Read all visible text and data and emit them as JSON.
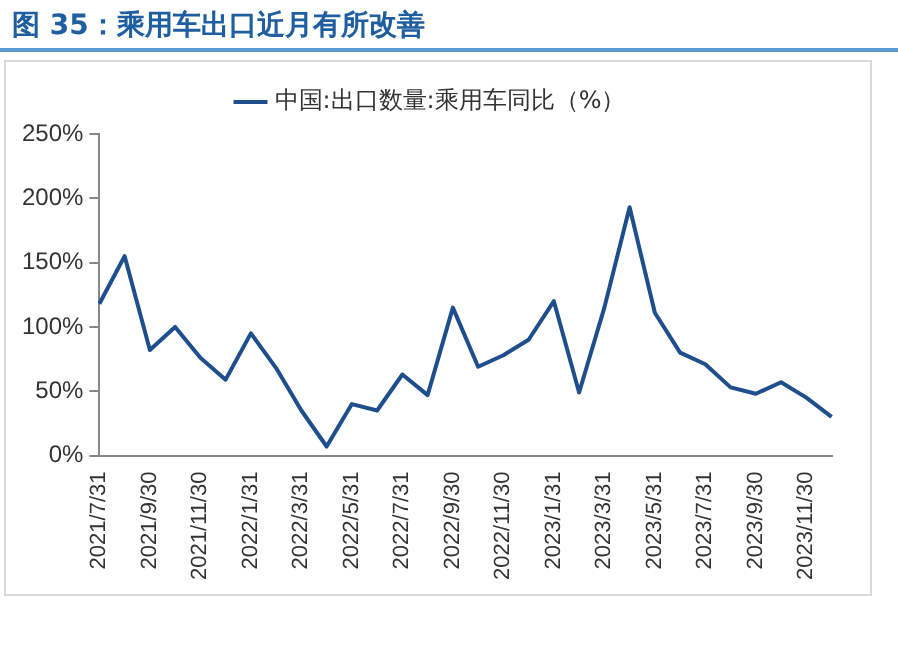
{
  "chart_data": {
    "type": "line",
    "title": "图 35：乘用车出口近月有所改善",
    "categories": [
      "2021/7/31",
      null,
      "2021/9/30",
      null,
      "2021/11/30",
      null,
      "2022/1/31",
      null,
      "2022/3/31",
      null,
      "2022/5/31",
      null,
      "2022/7/31",
      null,
      "2022/9/30",
      null,
      "2022/11/30",
      null,
      "2023/1/31",
      null,
      "2023/3/31",
      null,
      "2023/5/31",
      null,
      "2023/7/31",
      null,
      "2023/9/30",
      null,
      "2023/11/30",
      null
    ],
    "series": [
      {
        "name": "中国:出口数量:乘用车同比（%）",
        "color": "#1f4e8c",
        "values": [
          118,
          155,
          82,
          100,
          76,
          59,
          95,
          68,
          35,
          7,
          40,
          35,
          63,
          47,
          115,
          69,
          78,
          90,
          120,
          49,
          115,
          193,
          111,
          80,
          71,
          53,
          48,
          57,
          45,
          30
        ]
      }
    ],
    "ylim": [
      0,
      250
    ],
    "yticks": [
      {
        "value": 0,
        "label": "0%"
      },
      {
        "value": 50,
        "label": "50%"
      },
      {
        "value": 100,
        "label": "100%"
      },
      {
        "value": 150,
        "label": "150%"
      },
      {
        "value": 200,
        "label": "200%"
      },
      {
        "value": 250,
        "label": "250%"
      }
    ],
    "grid": false,
    "legend": "top",
    "marker": "none",
    "line_style": "solid"
  }
}
